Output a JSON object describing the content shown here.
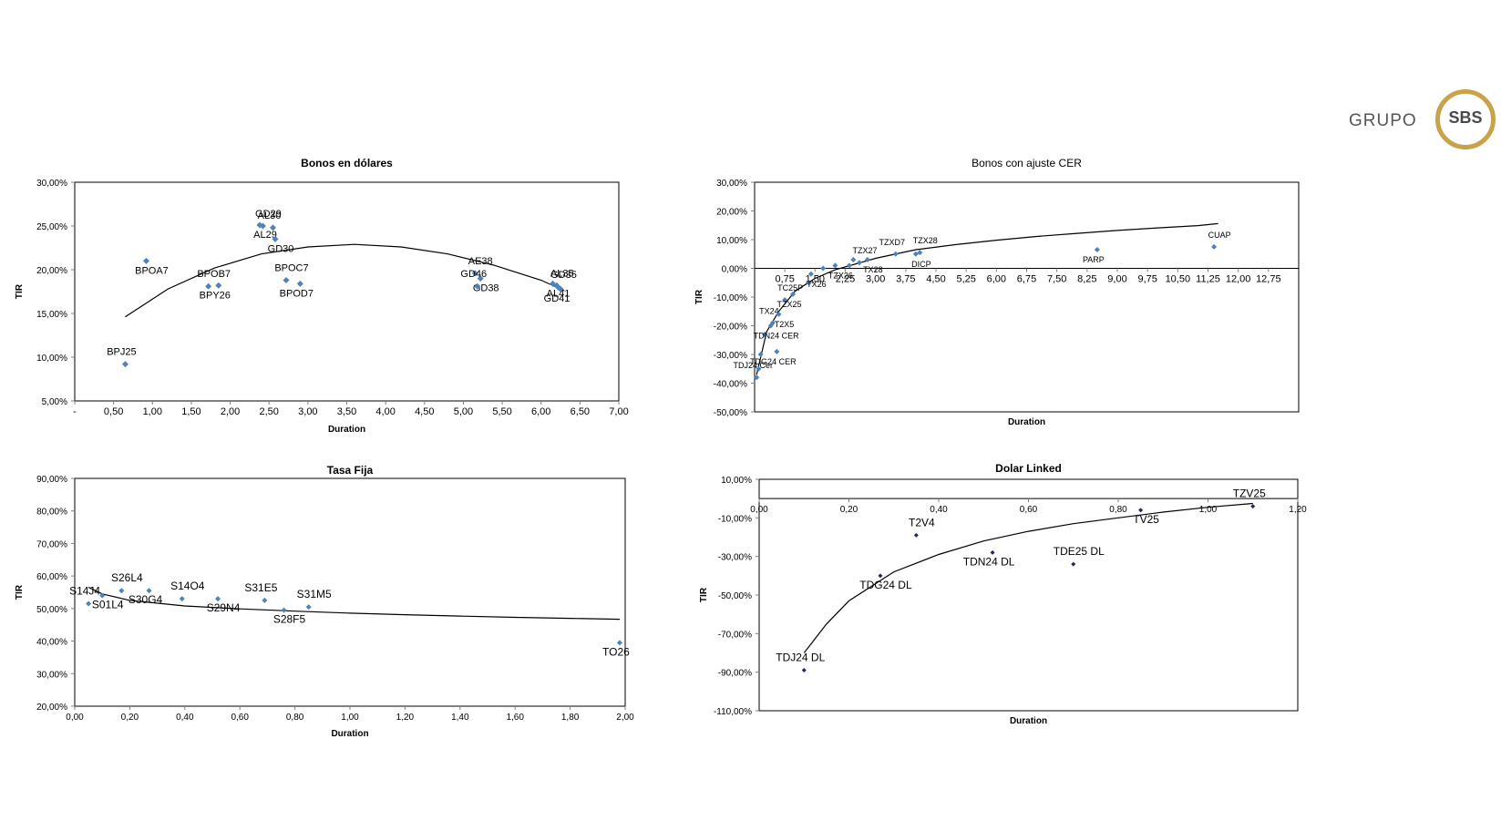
{
  "logo": {
    "word": "GRUPO",
    "badge": "SBS"
  },
  "colors": {
    "marker": "#4f81bd",
    "marker_dark": "#1f2a5a",
    "trend": "#000000",
    "axis": "#7f7f7f"
  },
  "chart_data": [
    {
      "id": "dolares",
      "type": "scatter",
      "title": "Bonos  en dólares",
      "xlabel": "Duration",
      "ylabel": "TIR",
      "xlim": [
        0,
        7
      ],
      "ylim": [
        5,
        30
      ],
      "x_ticks": [
        "-",
        "0,50",
        "1,00",
        "1,50",
        "2,00",
        "2,50",
        "3,00",
        "3,50",
        "4,00",
        "4,50",
        "5,00",
        "5,50",
        "6,00",
        "6,50",
        "7,00"
      ],
      "y_ticks": [
        "5,00%",
        "10,00%",
        "15,00%",
        "20,00%",
        "25,00%",
        "30,00%"
      ],
      "points": [
        {
          "label": "BPJ25",
          "x": 0.65,
          "y": 9.2
        },
        {
          "label": "BPOA7",
          "x": 0.92,
          "y": 21.0
        },
        {
          "label": "BPOB7",
          "x": 1.72,
          "y": 18.1
        },
        {
          "label": "BPY26",
          "x": 1.85,
          "y": 18.2
        },
        {
          "label": "GD29",
          "x": 2.42,
          "y": 25.0
        },
        {
          "label": "AL29",
          "x": 2.38,
          "y": 25.1
        },
        {
          "label": "AL30",
          "x": 2.55,
          "y": 24.8
        },
        {
          "label": "GD30",
          "x": 2.58,
          "y": 23.5
        },
        {
          "label": "BPOC7",
          "x": 2.72,
          "y": 18.8
        },
        {
          "label": "BPOD7",
          "x": 2.9,
          "y": 18.4
        },
        {
          "label": "AE38",
          "x": 5.15,
          "y": 19.6
        },
        {
          "label": "GD38",
          "x": 5.22,
          "y": 19.0
        },
        {
          "label": "GD46",
          "x": 5.18,
          "y": 18.1
        },
        {
          "label": "AL41",
          "x": 6.15,
          "y": 18.4
        },
        {
          "label": "AL35",
          "x": 6.2,
          "y": 18.2
        },
        {
          "label": "GD41",
          "x": 6.25,
          "y": 17.8
        },
        {
          "label": "GD35",
          "x": 6.22,
          "y": 18.0
        }
      ],
      "trend": {
        "x": [
          0.65,
          1.2,
          1.8,
          2.4,
          3.0,
          3.6,
          4.2,
          4.8,
          5.4,
          6.0,
          6.3
        ],
        "y": [
          14.6,
          17.8,
          20.2,
          21.8,
          22.6,
          22.9,
          22.6,
          21.8,
          20.5,
          18.8,
          17.6
        ]
      }
    },
    {
      "id": "cer",
      "type": "scatter",
      "title": "Bonos con ajuste CER",
      "xlabel": "Duration",
      "ylabel": "TIR",
      "xlim": [
        0,
        13.5
      ],
      "ylim": [
        -50,
        30
      ],
      "x_ticks": [
        "0,75",
        "1,50",
        "2,25",
        "3,00",
        "3,75",
        "4,50",
        "5,25",
        "6,00",
        "6,75",
        "7,50",
        "8,25",
        "9,00",
        "9,75",
        "10,50",
        "11,25",
        "12,00",
        "12,75"
      ],
      "y_ticks": [
        "-50,00%",
        "-40,00%",
        "-30,00%",
        "-20,00%",
        "-10,00%",
        "0,00%",
        "10,00%",
        "20,00%",
        "30,00%"
      ],
      "points": [
        {
          "label": "TDJ24 Cer",
          "x": 0.05,
          "y": -38
        },
        {
          "label": "",
          "x": 0.1,
          "y": -35
        },
        {
          "label": "",
          "x": 0.15,
          "y": -30
        },
        {
          "label": "TDG24 CER",
          "x": 0.55,
          "y": -29
        },
        {
          "label": "",
          "x": 0.25,
          "y": -23
        },
        {
          "label": "TDN24 CER",
          "x": 0.4,
          "y": -20
        },
        {
          "label": "TX24",
          "x": 0.45,
          "y": -19
        },
        {
          "label": "T2X5",
          "x": 0.6,
          "y": -16
        },
        {
          "label": "TC25P",
          "x": 0.75,
          "y": -11
        },
        {
          "label": "TZX25",
          "x": 0.95,
          "y": -9
        },
        {
          "label": "",
          "x": 1.35,
          "y": -5
        },
        {
          "label": "TX26",
          "x": 1.4,
          "y": -2
        },
        {
          "label": "",
          "x": 1.7,
          "y": 0
        },
        {
          "label": "TZX26",
          "x": 2.0,
          "y": 1
        },
        {
          "label": "",
          "x": 2.35,
          "y": 1
        },
        {
          "label": "",
          "x": 2.45,
          "y": 3
        },
        {
          "label": "TZX27",
          "x": 2.6,
          "y": 2
        },
        {
          "label": "TX28",
          "x": 2.8,
          "y": 3
        },
        {
          "label": "TZXD7",
          "x": 3.5,
          "y": 5
        },
        {
          "label": "DICP",
          "x": 4.0,
          "y": 5
        },
        {
          "label": "TZX28",
          "x": 4.1,
          "y": 5.5
        },
        {
          "label": "PARP",
          "x": 8.5,
          "y": 6.5
        },
        {
          "label": "CUAP",
          "x": 11.4,
          "y": 7.5
        }
      ],
      "trend": {
        "x": [
          0.05,
          0.3,
          0.6,
          1.0,
          1.5,
          2.0,
          3.0,
          4.0,
          5.0,
          6.0,
          7.0,
          8.0,
          9.0,
          10.0,
          11.0,
          11.5
        ],
        "y": [
          -37,
          -22,
          -15,
          -8,
          -3.5,
          -0.5,
          3.5,
          6.5,
          8.3,
          9.8,
          11.1,
          12.2,
          13.2,
          14.1,
          14.9,
          15.6
        ]
      }
    },
    {
      "id": "fija",
      "type": "scatter",
      "title": "Tasa Fija",
      "xlabel": "Duration",
      "ylabel": "TIR",
      "xlim": [
        0,
        2
      ],
      "ylim": [
        20,
        90
      ],
      "x_ticks": [
        "0,00",
        "0,20",
        "0,40",
        "0,60",
        "0,80",
        "1,00",
        "1,20",
        "1,40",
        "1,60",
        "1,80",
        "2,00"
      ],
      "y_ticks": [
        "20,00%",
        "30,00%",
        "40,00%",
        "50,00%",
        "60,00%",
        "70,00%",
        "80,00%",
        "90,00%"
      ],
      "points": [
        {
          "label": "S14J4",
          "x": 0.05,
          "y": 51.5
        },
        {
          "label": "S01L4",
          "x": 0.1,
          "y": 54.0
        },
        {
          "label": "S26L4",
          "x": 0.17,
          "y": 55.5
        },
        {
          "label": "S30G4",
          "x": 0.27,
          "y": 55.5
        },
        {
          "label": "S14O4",
          "x": 0.39,
          "y": 53.0
        },
        {
          "label": "S29N4",
          "x": 0.52,
          "y": 53.0
        },
        {
          "label": "S31E5",
          "x": 0.69,
          "y": 52.5
        },
        {
          "label": "S28F5",
          "x": 0.76,
          "y": 49.5
        },
        {
          "label": "S31M5",
          "x": 0.85,
          "y": 50.5
        },
        {
          "label": "TO26",
          "x": 1.98,
          "y": 39.5
        }
      ],
      "trend": {
        "x": [
          0.05,
          0.1,
          0.2,
          0.4,
          0.6,
          0.8,
          1.0,
          1.2,
          1.4,
          1.6,
          1.8,
          1.98
        ],
        "y": [
          56.5,
          54.5,
          52.5,
          50.8,
          49.9,
          49.2,
          48.6,
          48.1,
          47.7,
          47.3,
          47.0,
          46.7
        ]
      }
    },
    {
      "id": "dolarlinked",
      "type": "scatter",
      "title": "Dolar Linked",
      "xlabel": "Duration",
      "ylabel": "TIR",
      "xlim": [
        0,
        1.2
      ],
      "ylim": [
        -110,
        10
      ],
      "x_ticks": [
        "0,00",
        "0,20",
        "0,40",
        "0,60",
        "0,80",
        "1,00",
        "1,20"
      ],
      "y_ticks": [
        "-110,00%",
        "-90,00%",
        "-70,00%",
        "-50,00%",
        "-30,00%",
        "-10,00%",
        "10,00%"
      ],
      "points": [
        {
          "label": "TDJ24 DL",
          "x": 0.1,
          "y": -89
        },
        {
          "label": "TDG24 DL",
          "x": 0.27,
          "y": -40
        },
        {
          "label": "T2V4",
          "x": 0.35,
          "y": -19
        },
        {
          "label": "TDN24 DL",
          "x": 0.52,
          "y": -28
        },
        {
          "label": "TDE25 DL",
          "x": 0.7,
          "y": -34
        },
        {
          "label": "TV25",
          "x": 0.85,
          "y": -6
        },
        {
          "label": "TZV25",
          "x": 1.1,
          "y": -4
        }
      ],
      "trend": {
        "x": [
          0.1,
          0.15,
          0.2,
          0.3,
          0.4,
          0.5,
          0.6,
          0.7,
          0.8,
          0.9,
          1.0,
          1.1
        ],
        "y": [
          -80,
          -65,
          -53,
          -38,
          -29,
          -22,
          -17,
          -13,
          -10,
          -7,
          -4.5,
          -2.5
        ]
      }
    }
  ]
}
